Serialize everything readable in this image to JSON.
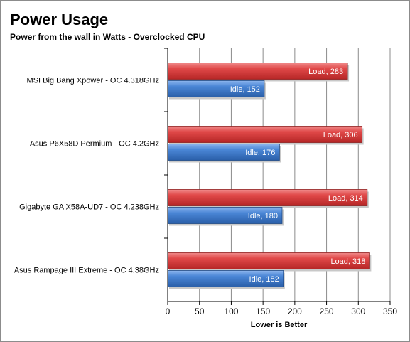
{
  "chart_data": {
    "type": "bar",
    "orientation": "horizontal",
    "title": "Power Usage",
    "subtitle": "Power from the wall in Watts - Overclocked  CPU",
    "xlabel": "Lower is Better",
    "ylabel": "",
    "xlim": [
      0,
      350
    ],
    "xticks": [
      0,
      50,
      100,
      150,
      200,
      250,
      300,
      350
    ],
    "grid": true,
    "legend": "none",
    "categories": [
      "MSI Big Bang Xpower - OC 4.318GHz",
      "Asus P6X58D Permium - OC 4.2GHz",
      "Gigabyte GA X58A-UD7 - OC 4.238GHz",
      "Asus Rampage III Extreme - OC 4.38GHz"
    ],
    "series": [
      {
        "name": "Load",
        "color": "#d9383a",
        "values": [
          283,
          306,
          314,
          318
        ]
      },
      {
        "name": "Idle",
        "color": "#3c78cd",
        "values": [
          152,
          176,
          180,
          182
        ]
      }
    ],
    "data_labels": [
      [
        "Load, 283",
        "Idle, 152"
      ],
      [
        "Load, 306",
        "Idle, 176"
      ],
      [
        "Load, 314",
        "Idle, 180"
      ],
      [
        "Load, 318",
        "Idle, 182"
      ]
    ]
  }
}
